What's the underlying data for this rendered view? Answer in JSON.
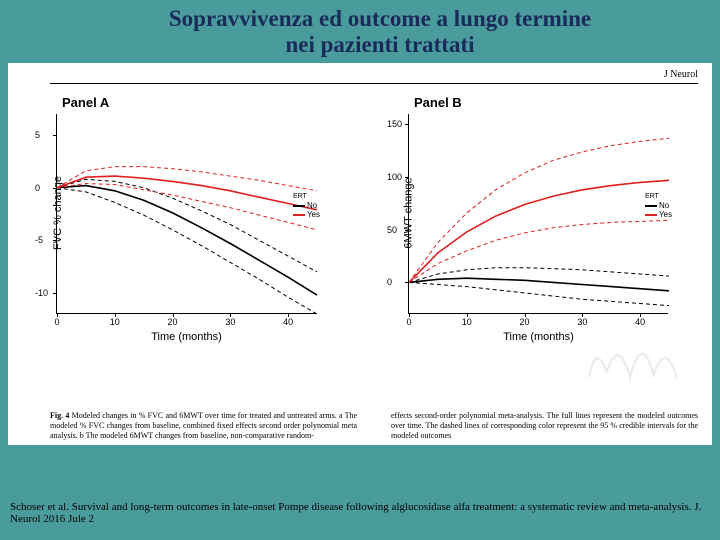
{
  "slide": {
    "title_line1": "Sopravvivenza ed outcome a lungo termine",
    "title_line2": "nei pazienti trattati",
    "bg_color": "#4a9b9b",
    "title_color": "#1a2a5a"
  },
  "figure": {
    "journal_label": "J Neurol",
    "panelA": {
      "title": "Panel A",
      "type": "line",
      "ylabel": "FVC % change",
      "xlabel": "Time (months)",
      "xlim": [
        0,
        45
      ],
      "xtick_step": 10,
      "ylim": [
        -12,
        7
      ],
      "yticks": [
        -10,
        -5,
        0,
        5
      ],
      "colors": {
        "no": "#000000",
        "yes": "#e02020"
      },
      "series": {
        "no_solid": [
          [
            0,
            0
          ],
          [
            5,
            0.2
          ],
          [
            10,
            -0.3
          ],
          [
            15,
            -1.2
          ],
          [
            20,
            -2.4
          ],
          [
            25,
            -3.8
          ],
          [
            30,
            -5.3
          ],
          [
            35,
            -6.9
          ],
          [
            40,
            -8.5
          ],
          [
            45,
            -10.2
          ]
        ],
        "no_upper": [
          [
            0,
            0
          ],
          [
            5,
            0.8
          ],
          [
            10,
            0.6
          ],
          [
            15,
            0
          ],
          [
            20,
            -1
          ],
          [
            25,
            -2.2
          ],
          [
            30,
            -3.5
          ],
          [
            35,
            -5
          ],
          [
            40,
            -6.5
          ],
          [
            45,
            -8
          ]
        ],
        "no_lower": [
          [
            0,
            0
          ],
          [
            5,
            -0.4
          ],
          [
            10,
            -1.4
          ],
          [
            15,
            -2.6
          ],
          [
            20,
            -4
          ],
          [
            25,
            -5.5
          ],
          [
            30,
            -7.1
          ],
          [
            35,
            -8.7
          ],
          [
            40,
            -10.4
          ],
          [
            45,
            -12
          ]
        ],
        "yes_solid": [
          [
            0,
            0
          ],
          [
            5,
            1.0
          ],
          [
            10,
            1.1
          ],
          [
            15,
            0.9
          ],
          [
            20,
            0.6
          ],
          [
            25,
            0.2
          ],
          [
            30,
            -0.3
          ],
          [
            35,
            -0.9
          ],
          [
            40,
            -1.5
          ],
          [
            45,
            -2.1
          ]
        ],
        "yes_upper": [
          [
            0,
            0
          ],
          [
            5,
            1.6
          ],
          [
            10,
            2.0
          ],
          [
            15,
            2.0
          ],
          [
            20,
            1.8
          ],
          [
            25,
            1.5
          ],
          [
            30,
            1.1
          ],
          [
            35,
            0.7
          ],
          [
            40,
            0.2
          ],
          [
            45,
            -0.3
          ]
        ],
        "yes_lower": [
          [
            0,
            0
          ],
          [
            5,
            0.4
          ],
          [
            10,
            0.3
          ],
          [
            15,
            -0.2
          ],
          [
            20,
            -0.7
          ],
          [
            25,
            -1.3
          ],
          [
            30,
            -1.9
          ],
          [
            35,
            -2.6
          ],
          [
            40,
            -3.3
          ],
          [
            45,
            -4.0
          ]
        ]
      },
      "line_width_solid": 1.6,
      "line_width_dash": 1.0,
      "dash": "4 3"
    },
    "panelB": {
      "title": "Panel B",
      "type": "line",
      "ylabel": "6MWT change",
      "xlabel": "Time (months)",
      "xlim": [
        0,
        45
      ],
      "xtick_step": 10,
      "ylim": [
        -30,
        160
      ],
      "yticks": [
        0,
        50,
        100,
        150
      ],
      "colors": {
        "no": "#000000",
        "yes": "#e02020"
      },
      "series": {
        "no_solid": [
          [
            0,
            0
          ],
          [
            5,
            3
          ],
          [
            10,
            4
          ],
          [
            15,
            3
          ],
          [
            20,
            2
          ],
          [
            25,
            0
          ],
          [
            30,
            -2
          ],
          [
            35,
            -4
          ],
          [
            40,
            -6
          ],
          [
            45,
            -8
          ]
        ],
        "no_upper": [
          [
            0,
            0
          ],
          [
            5,
            8
          ],
          [
            10,
            12
          ],
          [
            15,
            14
          ],
          [
            20,
            14
          ],
          [
            25,
            13
          ],
          [
            30,
            12
          ],
          [
            35,
            10
          ],
          [
            40,
            8
          ],
          [
            45,
            6
          ]
        ],
        "no_lower": [
          [
            0,
            0
          ],
          [
            5,
            -2
          ],
          [
            10,
            -4
          ],
          [
            15,
            -7
          ],
          [
            20,
            -10
          ],
          [
            25,
            -13
          ],
          [
            30,
            -16
          ],
          [
            35,
            -18
          ],
          [
            40,
            -20
          ],
          [
            45,
            -22
          ]
        ],
        "yes_solid": [
          [
            0,
            0
          ],
          [
            5,
            28
          ],
          [
            10,
            48
          ],
          [
            15,
            63
          ],
          [
            20,
            74
          ],
          [
            25,
            82
          ],
          [
            30,
            88
          ],
          [
            35,
            92
          ],
          [
            40,
            95
          ],
          [
            45,
            97
          ]
        ],
        "yes_upper": [
          [
            0,
            0
          ],
          [
            5,
            38
          ],
          [
            10,
            66
          ],
          [
            15,
            88
          ],
          [
            20,
            104
          ],
          [
            25,
            116
          ],
          [
            30,
            124
          ],
          [
            35,
            130
          ],
          [
            40,
            134
          ],
          [
            45,
            137
          ]
        ],
        "yes_lower": [
          [
            0,
            0
          ],
          [
            5,
            18
          ],
          [
            10,
            30
          ],
          [
            15,
            40
          ],
          [
            20,
            47
          ],
          [
            25,
            52
          ],
          [
            30,
            55
          ],
          [
            35,
            57
          ],
          [
            40,
            58
          ],
          [
            45,
            59
          ]
        ]
      },
      "line_width_solid": 1.6,
      "line_width_dash": 1.0,
      "dash": "4 3"
    },
    "legend": {
      "title": "ERT",
      "no": "No",
      "yes": "Yes"
    },
    "caption_bold": "Fig. 4",
    "caption_left": "Modeled changes in % FVC and 6MWT over time for treated and untreated arms. a The modeled % FVC changes from baseline, combined fixed effects second order polynomial meta analysis. b The modeled 6MWT changes from baseline, non-comparative random-",
    "caption_right": "effects second-order polynomial meta-analysis. The full lines represent the modeled outcomes over time. The dashed lines of corresponding color represent the 95 % credible intervals for the modeled outcomes"
  },
  "citation": "Schoser et al. Survival and long-term outcomes in late-onset Pompe disease following alglucosidase alfa treatment: a systematic review and meta-analysis. J. Neurol 2016 Jule 2"
}
